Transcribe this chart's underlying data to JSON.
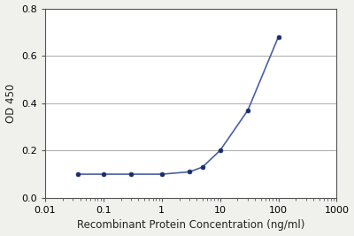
{
  "x": [
    0.037,
    0.1,
    0.3,
    1.0,
    3.0,
    5.0,
    10.0,
    30.0,
    100.0
  ],
  "y": [
    0.1,
    0.1,
    0.1,
    0.1,
    0.11,
    0.13,
    0.2,
    0.37,
    0.68
  ],
  "line_color": "#4A5FA5",
  "marker_color": "#1A2D6B",
  "marker_size": 3.5,
  "line_width": 1.2,
  "xlabel": "Recombinant Protein Concentration (ng/ml)",
  "ylabel": "OD 450",
  "xlim": [
    0.01,
    1000
  ],
  "ylim": [
    0,
    0.8
  ],
  "yticks": [
    0,
    0.2,
    0.4,
    0.6,
    0.8
  ],
  "xtick_labels": [
    "0.01",
    "0.1",
    "1",
    "10",
    "100",
    "1000"
  ],
  "xlabel_fontsize": 8.5,
  "ylabel_fontsize": 8.5,
  "tick_fontsize": 8,
  "xlabel_color": "#222222",
  "ylabel_color": "#222222",
  "background_color": "#f0f0ec",
  "plot_bg_color": "#ffffff",
  "grid_color": "#aaaaaa"
}
